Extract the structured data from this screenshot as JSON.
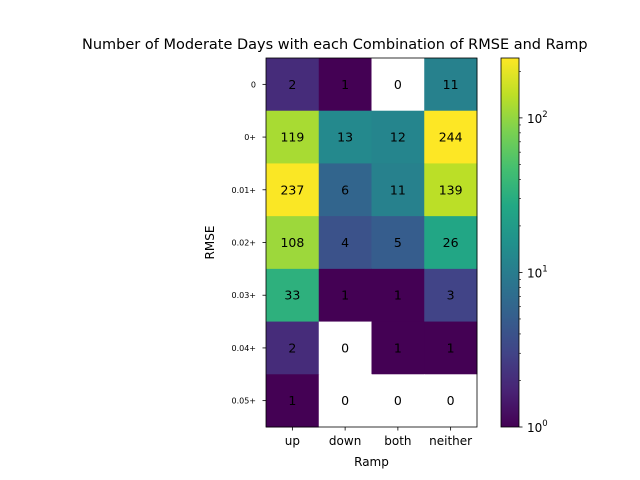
{
  "chart_data": {
    "type": "heatmap",
    "title": "Number of Moderate Days with each Combination of RMSE and Ramp",
    "xlabel": "Ramp",
    "ylabel": "RMSE",
    "x_categories": [
      "up",
      "down",
      "both",
      "neither"
    ],
    "y_categories": [
      "0",
      "0+",
      "0.01+",
      "0.02+",
      "0.03+",
      "0.04+",
      "0.05+"
    ],
    "values": [
      [
        2,
        1,
        0,
        11
      ],
      [
        119,
        13,
        12,
        244
      ],
      [
        237,
        6,
        11,
        139
      ],
      [
        108,
        4,
        5,
        26
      ],
      [
        33,
        1,
        1,
        3
      ],
      [
        2,
        0,
        1,
        1
      ],
      [
        1,
        0,
        0,
        0
      ]
    ],
    "colorbar": {
      "scale": "log",
      "colormap": "viridis",
      "min": 1,
      "max": 244,
      "tick_values": [
        1,
        10,
        100
      ],
      "tick_labels": [
        "10",
        "10",
        "10"
      ],
      "tick_exponents": [
        "0",
        "1",
        "2"
      ]
    },
    "zero_cell_color": "#ffffff",
    "grid": false
  }
}
